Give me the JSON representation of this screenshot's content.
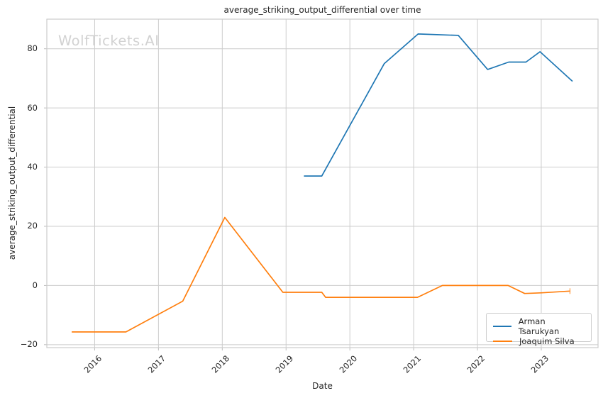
{
  "chart_data": {
    "type": "line",
    "title": "average_striking_output_differential over time",
    "xlabel": "Date",
    "ylabel": "average_striking_output_differential",
    "watermark": "WolfTickets.AI",
    "grid": true,
    "legend_position": "lower right",
    "xlim": [
      2015.25,
      2023.89
    ],
    "ylim": [
      -21,
      90
    ],
    "xticks": [
      2016,
      2017,
      2018,
      2019,
      2020,
      2021,
      2022,
      2023
    ],
    "yticks": [
      -20,
      0,
      20,
      40,
      60,
      80
    ],
    "colors": {
      "grid": "#cccccc",
      "background": "#ffffff",
      "text": "#262626",
      "watermark": "#d2d2d2"
    },
    "series": [
      {
        "name": "Arman Tsarukyan",
        "color": "#1f77b4",
        "points": [
          [
            2019.28,
            37
          ],
          [
            2019.56,
            37
          ],
          [
            2020.54,
            75
          ],
          [
            2021.07,
            85
          ],
          [
            2021.7,
            84.5
          ],
          [
            2022.16,
            73
          ],
          [
            2022.49,
            75.5
          ],
          [
            2022.76,
            75.5
          ],
          [
            2022.98,
            79
          ],
          [
            2023.49,
            69
          ]
        ]
      },
      {
        "name": "Joaquim Silva",
        "color": "#ff7f0e",
        "points": [
          [
            2015.64,
            -15.7
          ],
          [
            2016.49,
            -15.7
          ],
          [
            2017.38,
            -5.3
          ],
          [
            2018.04,
            23
          ],
          [
            2018.95,
            -2.3
          ],
          [
            2019.56,
            -2.3
          ],
          [
            2019.62,
            -4
          ],
          [
            2021.06,
            -4
          ],
          [
            2021.45,
            0
          ],
          [
            2022.48,
            0
          ],
          [
            2022.74,
            -2.7
          ],
          [
            2022.99,
            -2.5
          ],
          [
            2023.45,
            -1.9
          ]
        ]
      }
    ],
    "end_marker_on_last_point_of_series": "Joaquim Silva"
  }
}
